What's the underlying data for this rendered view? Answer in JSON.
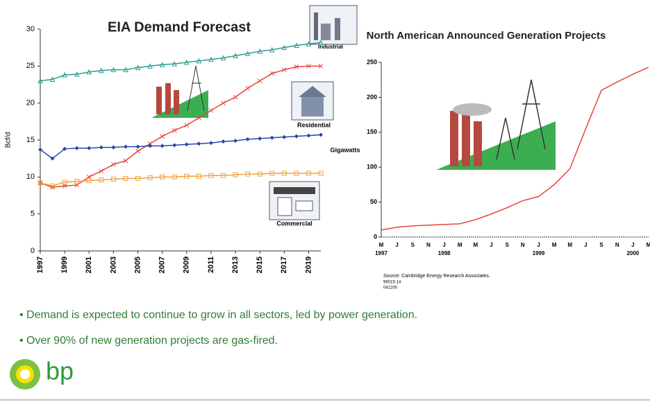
{
  "chart_data": [
    {
      "type": "line",
      "title": "EIA Demand Forecast",
      "y_label": "Bcf/d",
      "x": [
        1997,
        1998,
        1999,
        2000,
        2001,
        2002,
        2003,
        2004,
        2005,
        2006,
        2007,
        2008,
        2009,
        2010,
        2011,
        2012,
        2013,
        2014,
        2015,
        2016,
        2017,
        2018,
        2019,
        2020
      ],
      "xlim": [
        1997,
        2020
      ],
      "xticks": [
        1997,
        1999,
        2001,
        2003,
        2005,
        2007,
        2009,
        2011,
        2013,
        2015,
        2017,
        2019
      ],
      "ylim": [
        0,
        30
      ],
      "yticks": [
        0,
        5,
        10,
        15,
        20,
        25,
        30
      ],
      "series": [
        {
          "name": "Industrial",
          "color": "#2a9d8f",
          "marker": "triangle",
          "values": [
            23,
            23.2,
            23.8,
            23.9,
            24.2,
            24.4,
            24.5,
            24.5,
            24.8,
            25,
            25.2,
            25.3,
            25.5,
            25.7,
            25.9,
            26.1,
            26.4,
            26.7,
            27,
            27.2,
            27.5,
            27.8,
            28,
            28.2
          ]
        },
        {
          "color": "#e8423a",
          "marker": "x",
          "values": [
            9.2,
            8.6,
            8.8,
            8.9,
            10,
            10.8,
            11.7,
            12.2,
            13.5,
            14.5,
            15.5,
            16.3,
            17,
            18,
            19,
            20,
            20.8,
            22,
            23,
            24,
            24.5,
            24.9,
            25,
            25
          ]
        },
        {
          "name": "Residential",
          "color": "#2a45a8",
          "marker": "diamond",
          "values": [
            13.7,
            12.5,
            13.8,
            13.9,
            13.9,
            14,
            14,
            14.1,
            14.1,
            14.2,
            14.2,
            14.3,
            14.4,
            14.5,
            14.6,
            14.8,
            14.9,
            15.1,
            15.2,
            15.3,
            15.4,
            15.5,
            15.6,
            15.7
          ]
        },
        {
          "name": "Commercial",
          "color": "#f0a23a",
          "marker": "square",
          "values": [
            9.2,
            8.8,
            9.3,
            9.4,
            9.5,
            9.6,
            9.7,
            9.8,
            9.8,
            9.9,
            10,
            10,
            10.1,
            10.1,
            10.2,
            10.2,
            10.3,
            10.4,
            10.4,
            10.5,
            10.5,
            10.5,
            10.5,
            10.5
          ]
        }
      ]
    },
    {
      "type": "line",
      "title": "North American Announced Generation Projects",
      "y_label": "Gigawatts",
      "categories": [
        "M",
        "J",
        "S",
        "N",
        "J",
        "M",
        "M",
        "J",
        "S",
        "N",
        "J",
        "M",
        "M",
        "J",
        "S",
        "N",
        "J",
        "M"
      ],
      "year_labels": [
        "1997",
        "1998",
        "1999",
        "2000"
      ],
      "year_positions": [
        0,
        4,
        10,
        16
      ],
      "ylim": [
        0,
        250
      ],
      "yticks": [
        0,
        50,
        100,
        150,
        200,
        250
      ],
      "color": "#e8423a",
      "values": [
        10,
        14,
        16,
        17,
        18,
        19,
        25,
        33,
        42,
        52,
        58,
        75,
        98,
        155,
        210,
        222,
        233,
        243
      ],
      "source": "Source: Cambridge Energy Research Associates.",
      "source_codes": [
        "98015-14",
        "041200"
      ]
    }
  ],
  "bullets": [
    "Demand is expected to continue to grow in all sectors, led by power generation.",
    "Over 90% of new generation projects are gas-fired."
  ],
  "logo": "bp"
}
